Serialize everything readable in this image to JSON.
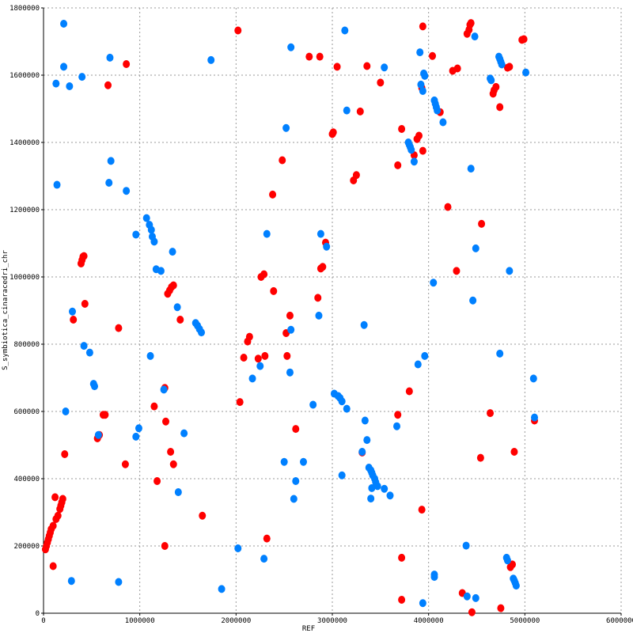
{
  "chart_data": {
    "type": "scatter",
    "xlabel": "REF",
    "ylabel": "S_symbiotica_cinaracedri_chr",
    "xlim": [
      0,
      6000000
    ],
    "ylim": [
      0,
      1800000
    ],
    "x_ticks": [
      0,
      1000000,
      2000000,
      3000000,
      4000000,
      5000000,
      6000000
    ],
    "x_tick_labels": [
      "0",
      "1000000",
      "2000000",
      "3000000",
      "4000000",
      "5000000",
      "6000000"
    ],
    "y_ticks": [
      0,
      200000,
      400000,
      600000,
      800000,
      1000000,
      1200000,
      1400000,
      1600000,
      1800000
    ],
    "y_tick_labels": [
      "0",
      "200000",
      "400000",
      "600000",
      "800000",
      "1000000",
      "1200000",
      "1400000",
      "1600000",
      "1800000"
    ],
    "grid": true,
    "colors": {
      "forward": "#ff0000",
      "reverse": "#0080ff"
    },
    "series": [
      {
        "color": "#ff0000",
        "points": [
          [
            20000,
            190000
          ],
          [
            30000,
            200000
          ],
          [
            40000,
            210000
          ],
          [
            50000,
            220000
          ],
          [
            60000,
            230000
          ],
          [
            70000,
            240000
          ],
          [
            80000,
            250000
          ],
          [
            100000,
            260000
          ],
          [
            130000,
            280000
          ],
          [
            150000,
            290000
          ],
          [
            170000,
            310000
          ],
          [
            180000,
            320000
          ],
          [
            190000,
            330000
          ],
          [
            200000,
            340000
          ],
          [
            120000,
            345000
          ],
          [
            100000,
            140000
          ],
          [
            220000,
            473000
          ],
          [
            390000,
            1040000
          ],
          [
            400000,
            1050000
          ],
          [
            410000,
            1060000
          ],
          [
            420000,
            1062000
          ],
          [
            430000,
            920000
          ],
          [
            310000,
            873000
          ],
          [
            560000,
            520000
          ],
          [
            580000,
            530000
          ],
          [
            620000,
            590000
          ],
          [
            640000,
            590000
          ],
          [
            780000,
            848000
          ],
          [
            850000,
            443000
          ],
          [
            670000,
            1570000
          ],
          [
            860000,
            1633000
          ],
          [
            1150000,
            615000
          ],
          [
            1180000,
            393000
          ],
          [
            1260000,
            670000
          ],
          [
            1270000,
            570000
          ],
          [
            1260000,
            200000
          ],
          [
            1290000,
            950000
          ],
          [
            1310000,
            960000
          ],
          [
            1330000,
            970000
          ],
          [
            1350000,
            975000
          ],
          [
            1320000,
            480000
          ],
          [
            1350000,
            443000
          ],
          [
            1420000,
            873000
          ],
          [
            1650000,
            290000
          ],
          [
            2020000,
            1733000
          ],
          [
            2040000,
            628000
          ],
          [
            2080000,
            760000
          ],
          [
            2120000,
            808000
          ],
          [
            2140000,
            822000
          ],
          [
            2230000,
            757000
          ],
          [
            2260000,
            1000000
          ],
          [
            2290000,
            1008000
          ],
          [
            2300000,
            765000
          ],
          [
            2320000,
            222000
          ],
          [
            2380000,
            1245000
          ],
          [
            2390000,
            958000
          ],
          [
            2480000,
            1347000
          ],
          [
            2520000,
            833000
          ],
          [
            2530000,
            765000
          ],
          [
            2560000,
            885000
          ],
          [
            2620000,
            548000
          ],
          [
            2760000,
            1655000
          ],
          [
            2870000,
            1655000
          ],
          [
            2850000,
            938000
          ],
          [
            2880000,
            1025000
          ],
          [
            2900000,
            1030000
          ],
          [
            2930000,
            1102000
          ],
          [
            3000000,
            1425000
          ],
          [
            3010000,
            1430000
          ],
          [
            3050000,
            1625000
          ],
          [
            3220000,
            1287000
          ],
          [
            3250000,
            1303000
          ],
          [
            3290000,
            1492000
          ],
          [
            3310000,
            478000
          ],
          [
            3360000,
            1627000
          ],
          [
            3500000,
            1578000
          ],
          [
            3680000,
            1332000
          ],
          [
            3680000,
            590000
          ],
          [
            3720000,
            1440000
          ],
          [
            3720000,
            165000
          ],
          [
            3720000,
            40000
          ],
          [
            3800000,
            660000
          ],
          [
            3850000,
            1362000
          ],
          [
            3880000,
            1410000
          ],
          [
            3900000,
            1420000
          ],
          [
            3940000,
            1375000
          ],
          [
            3930000,
            1562000
          ],
          [
            3940000,
            1745000
          ],
          [
            3930000,
            308000
          ],
          [
            4040000,
            1657000
          ],
          [
            4120000,
            1490000
          ],
          [
            4200000,
            1208000
          ],
          [
            4250000,
            1613000
          ],
          [
            4300000,
            1620000
          ],
          [
            4290000,
            1018000
          ],
          [
            4350000,
            60000
          ],
          [
            4400000,
            1723000
          ],
          [
            4420000,
            1735000
          ],
          [
            4430000,
            1750000
          ],
          [
            4440000,
            1755000
          ],
          [
            4450000,
            3000
          ],
          [
            4550000,
            1158000
          ],
          [
            4540000,
            462000
          ],
          [
            4640000,
            595000
          ],
          [
            4670000,
            1545000
          ],
          [
            4680000,
            1555000
          ],
          [
            4700000,
            1565000
          ],
          [
            4740000,
            1505000
          ],
          [
            4750000,
            15000
          ],
          [
            4820000,
            1622000
          ],
          [
            4840000,
            1625000
          ],
          [
            4850000,
            137000
          ],
          [
            4870000,
            145000
          ],
          [
            4890000,
            480000
          ],
          [
            4970000,
            1705000
          ],
          [
            4990000,
            1707000
          ],
          [
            5100000,
            573000
          ]
        ]
      },
      {
        "color": "#0080ff",
        "points": [
          [
            130000,
            1575000
          ],
          [
            140000,
            1274000
          ],
          [
            210000,
            1625000
          ],
          [
            210000,
            1753000
          ],
          [
            230000,
            600000
          ],
          [
            270000,
            1567000
          ],
          [
            300000,
            897000
          ],
          [
            290000,
            96000
          ],
          [
            400000,
            1595000
          ],
          [
            420000,
            795000
          ],
          [
            480000,
            775000
          ],
          [
            520000,
            682000
          ],
          [
            530000,
            675000
          ],
          [
            570000,
            530000
          ],
          [
            680000,
            1280000
          ],
          [
            700000,
            1345000
          ],
          [
            690000,
            1652000
          ],
          [
            780000,
            93000
          ],
          [
            860000,
            1256000
          ],
          [
            960000,
            525000
          ],
          [
            960000,
            1126000
          ],
          [
            990000,
            550000
          ],
          [
            1070000,
            1175000
          ],
          [
            1100000,
            1155000
          ],
          [
            1120000,
            1140000
          ],
          [
            1130000,
            1120000
          ],
          [
            1150000,
            1105000
          ],
          [
            1110000,
            765000
          ],
          [
            1170000,
            1023000
          ],
          [
            1220000,
            1018000
          ],
          [
            1250000,
            665000
          ],
          [
            1340000,
            1075000
          ],
          [
            1390000,
            910000
          ],
          [
            1400000,
            360000
          ],
          [
            1460000,
            535000
          ],
          [
            1580000,
            863000
          ],
          [
            1600000,
            855000
          ],
          [
            1620000,
            845000
          ],
          [
            1640000,
            835000
          ],
          [
            1740000,
            1645000
          ],
          [
            1850000,
            72000
          ],
          [
            2020000,
            193000
          ],
          [
            2170000,
            698000
          ],
          [
            2250000,
            735000
          ],
          [
            2290000,
            162000
          ],
          [
            2320000,
            1128000
          ],
          [
            2500000,
            450000
          ],
          [
            2520000,
            1443000
          ],
          [
            2560000,
            716000
          ],
          [
            2570000,
            843000
          ],
          [
            2570000,
            1683000
          ],
          [
            2600000,
            340000
          ],
          [
            2620000,
            393000
          ],
          [
            2700000,
            450000
          ],
          [
            2800000,
            620000
          ],
          [
            2860000,
            885000
          ],
          [
            2880000,
            1128000
          ],
          [
            2940000,
            1090000
          ],
          [
            3020000,
            653000
          ],
          [
            3060000,
            646000
          ],
          [
            3080000,
            640000
          ],
          [
            3100000,
            630000
          ],
          [
            3100000,
            410000
          ],
          [
            3130000,
            1733000
          ],
          [
            3150000,
            1495000
          ],
          [
            3150000,
            608000
          ],
          [
            3310000,
            480000
          ],
          [
            3330000,
            857000
          ],
          [
            3340000,
            573000
          ],
          [
            3360000,
            515000
          ],
          [
            3380000,
            433000
          ],
          [
            3400000,
            425000
          ],
          [
            3410000,
            418000
          ],
          [
            3420000,
            410000
          ],
          [
            3440000,
            400000
          ],
          [
            3450000,
            390000
          ],
          [
            3470000,
            378000
          ],
          [
            3410000,
            372000
          ],
          [
            3400000,
            341000
          ],
          [
            3540000,
            370000
          ],
          [
            3540000,
            1623000
          ],
          [
            3600000,
            350000
          ],
          [
            3670000,
            556000
          ],
          [
            3790000,
            1400000
          ],
          [
            3800000,
            1393000
          ],
          [
            3810000,
            1386000
          ],
          [
            3820000,
            1378000
          ],
          [
            3850000,
            1343000
          ],
          [
            3890000,
            740000
          ],
          [
            3910000,
            1668000
          ],
          [
            3920000,
            1572000
          ],
          [
            3940000,
            1553000
          ],
          [
            3950000,
            1605000
          ],
          [
            3960000,
            1598000
          ],
          [
            3960000,
            765000
          ],
          [
            3940000,
            30000
          ],
          [
            4050000,
            983000
          ],
          [
            4060000,
            1525000
          ],
          [
            4070000,
            1515000
          ],
          [
            4080000,
            1505000
          ],
          [
            4090000,
            1495000
          ],
          [
            4060000,
            115000
          ],
          [
            4060000,
            108000
          ],
          [
            4150000,
            1460000
          ],
          [
            4390000,
            201000
          ],
          [
            4400000,
            50000
          ],
          [
            4440000,
            1322000
          ],
          [
            4460000,
            930000
          ],
          [
            4480000,
            1715000
          ],
          [
            4490000,
            1085000
          ],
          [
            4490000,
            45000
          ],
          [
            4640000,
            1590000
          ],
          [
            4650000,
            1585000
          ],
          [
            4730000,
            1655000
          ],
          [
            4740000,
            1648000
          ],
          [
            4750000,
            1640000
          ],
          [
            4760000,
            1632000
          ],
          [
            4740000,
            772000
          ],
          [
            4810000,
            165000
          ],
          [
            4820000,
            157000
          ],
          [
            4840000,
            1018000
          ],
          [
            4880000,
            103000
          ],
          [
            4890000,
            97000
          ],
          [
            4900000,
            90000
          ],
          [
            4910000,
            82000
          ],
          [
            5010000,
            1608000
          ],
          [
            5090000,
            698000
          ],
          [
            5100000,
            582000
          ]
        ]
      }
    ]
  }
}
